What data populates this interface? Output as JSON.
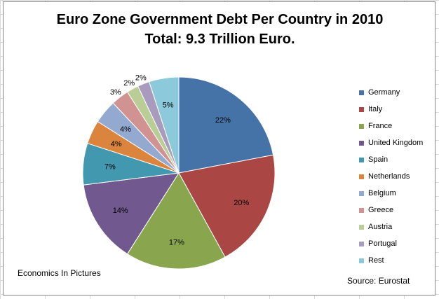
{
  "chart_data": {
    "type": "pie",
    "title": "Euro Zone Government Debt Per Country in 2010",
    "subtitle": "Total: 9.3 Trillion Euro.",
    "categories": [
      "Germany",
      "Italy",
      "France",
      "United Kingdom",
      "Spain",
      "Netherlands",
      "Belgium",
      "Greece",
      "Austria",
      "Portugal",
      "Rest"
    ],
    "values": [
      22,
      20,
      17,
      14,
      7,
      4,
      4,
      3,
      2,
      2,
      5
    ],
    "labels": [
      "22%",
      "20%",
      "17%",
      "14%",
      "7%",
      "4%",
      "4%",
      "3%",
      "2%",
      "2%",
      "5%"
    ],
    "colors": [
      "#4572A7",
      "#AA4643",
      "#89A54E",
      "#71588F",
      "#4198AF",
      "#DB843D",
      "#93A9CF",
      "#D19392",
      "#B9CD96",
      "#A99BBD",
      "#8CC9DB"
    ],
    "legend_position": "right"
  },
  "notes": {
    "credit": "Economics In Pictures",
    "source": "Source: Eurostat"
  }
}
